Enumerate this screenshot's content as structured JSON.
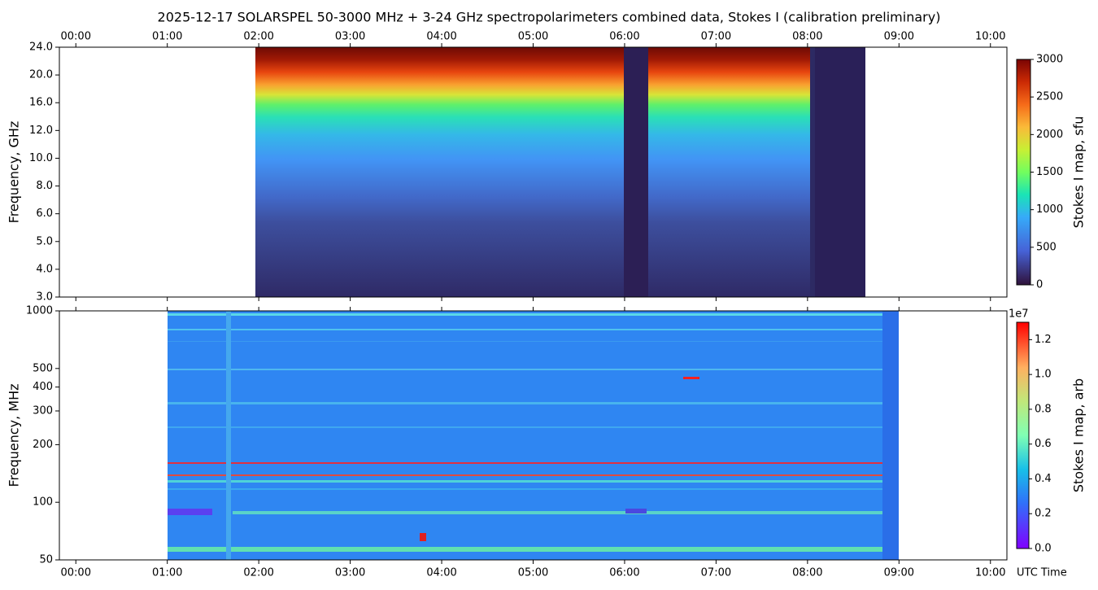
{
  "chart_data": [
    {
      "type": "heatmap",
      "title": "2025-12-17  SOLARSPEL  50-3000 MHz  +  3-24 GHz  spectropolarimeters combined data,  Stokes I  (calibration preliminary)",
      "ylabel": "Frequency, GHz",
      "xlim": [
        -0.18,
        10.18
      ],
      "xticks": [
        {
          "value": 0,
          "label": "00:00"
        },
        {
          "value": 1,
          "label": "01:00"
        },
        {
          "value": 2,
          "label": "02:00"
        },
        {
          "value": 3,
          "label": "03:00"
        },
        {
          "value": 4,
          "label": "04:00"
        },
        {
          "value": 5,
          "label": "05:00"
        },
        {
          "value": 6,
          "label": "06:00"
        },
        {
          "value": 7,
          "label": "07:00"
        },
        {
          "value": 8,
          "label": "08:00"
        },
        {
          "value": 9,
          "label": "09:00"
        },
        {
          "value": 10,
          "label": "10:00"
        }
      ],
      "ylim": [
        3,
        24
      ],
      "yticks": [
        {
          "value": 3,
          "label": "3.0"
        },
        {
          "value": 4,
          "label": "4.0"
        },
        {
          "value": 5,
          "label": "5.0"
        },
        {
          "value": 6,
          "label": "6.0"
        },
        {
          "value": 8,
          "label": "8.0"
        },
        {
          "value": 10,
          "label": "10.0"
        },
        {
          "value": 12,
          "label": "12.0"
        },
        {
          "value": 16,
          "label": "16.0"
        },
        {
          "value": 20,
          "label": "20.0"
        },
        {
          "value": 24,
          "label": "24.0"
        }
      ],
      "colorbar": {
        "label": "Stokes I map, sfu",
        "lim": [
          0,
          3000
        ],
        "ticks": [
          0,
          500,
          1000,
          1500,
          2000,
          2500,
          3000
        ]
      }
    },
    {
      "type": "heatmap",
      "ylabel": "Frequency, MHz",
      "xlabel": "UTC Time",
      "log": true,
      "xlim": [
        -0.18,
        10.18
      ],
      "xticks": [
        {
          "value": 0,
          "label": "00:00"
        },
        {
          "value": 1,
          "label": "01:00"
        },
        {
          "value": 2,
          "label": "02:00"
        },
        {
          "value": 3,
          "label": "03:00"
        },
        {
          "value": 4,
          "label": "04:00"
        },
        {
          "value": 5,
          "label": "05:00"
        },
        {
          "value": 6,
          "label": "06:00"
        },
        {
          "value": 7,
          "label": "07:00"
        },
        {
          "value": 8,
          "label": "08:00"
        },
        {
          "value": 9,
          "label": "09:00"
        },
        {
          "value": 10,
          "label": "10:00"
        }
      ],
      "ylim": [
        50,
        1000
      ],
      "yticks": [
        50,
        100,
        200,
        300,
        400,
        500,
        1000
      ],
      "colorbar": {
        "label": "Stokes I map, arb",
        "offset": "1e7",
        "lim": [
          0,
          13000000
        ],
        "ticks": [
          {
            "value": 0,
            "label": "0.0"
          },
          {
            "value": 2000000,
            "label": "0.2"
          },
          {
            "value": 4000000,
            "label": "0.4"
          },
          {
            "value": 6000000,
            "label": "0.6"
          },
          {
            "value": 8000000,
            "label": "0.8"
          },
          {
            "value": 10000000,
            "label": "1.0"
          },
          {
            "value": 12000000,
            "label": "1.2"
          }
        ]
      }
    }
  ]
}
